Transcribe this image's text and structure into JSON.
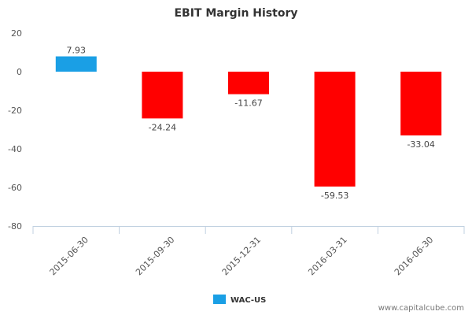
{
  "chart_data": {
    "type": "bar",
    "title": "EBIT Margin History",
    "xlabel": "",
    "ylabel": "",
    "ylim": [
      -80,
      20
    ],
    "yticks": [
      20,
      0,
      -20,
      -40,
      -60,
      -80
    ],
    "grid": false,
    "legend_position": "bottom-center",
    "categories": [
      "2015-06-30",
      "2015-09-30",
      "2015-12-31",
      "2016-03-31",
      "2016-06-30"
    ],
    "series": [
      {
        "name": "WAC-US",
        "values": [
          7.93,
          -24.24,
          -11.67,
          -59.53,
          -33.04
        ],
        "data_labels": [
          "7.93",
          "-24.24",
          "-11.67",
          "-59.53",
          "-33.04"
        ]
      }
    ],
    "colors": {
      "positive": "#1a9fe5",
      "negative": "#ff0000",
      "legend": "#1a9fe5",
      "axis": "#c0d0e0"
    }
  },
  "footer": {
    "credit": "www.capitalcube.com"
  }
}
